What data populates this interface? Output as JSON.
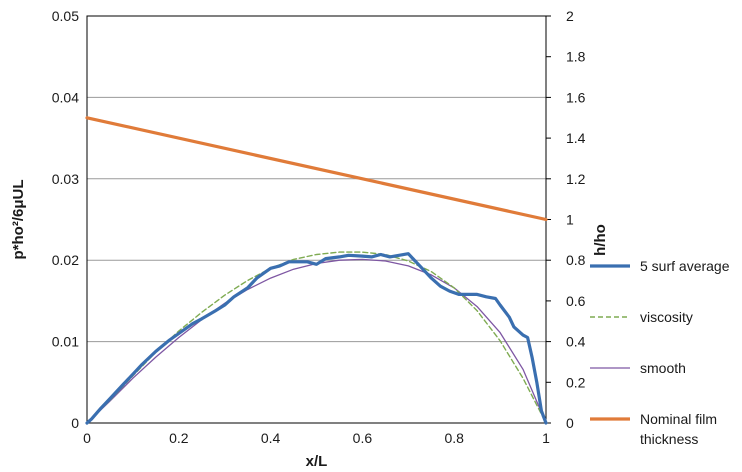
{
  "chart_data": {
    "type": "line",
    "title": "",
    "xlabel": "x/L",
    "ylabel_left": "p*ho²/6μUL",
    "ylabel_right": "h/ho",
    "xlim": [
      0,
      1
    ],
    "ylim_left": [
      0,
      0.05
    ],
    "ylim_right": [
      0,
      2
    ],
    "x_ticks": [
      "0",
      "0.2",
      "0.4",
      "0.6",
      "0.8",
      "1"
    ],
    "y_left_ticks": [
      "0",
      "0.01",
      "0.02",
      "0.03",
      "0.04",
      "0.05"
    ],
    "y_right_ticks": [
      "0",
      "0.2",
      "0.4",
      "0.6",
      "0.8",
      "1",
      "1.2",
      "1.4",
      "1.6",
      "1.8",
      "2"
    ],
    "grid": "horizontal",
    "legend_position": "right",
    "series": [
      {
        "name": "5 surf average",
        "axis": "left",
        "color": "#3a6fb0",
        "style": "solid-thick",
        "points": [
          [
            0,
            0
          ],
          [
            0.01,
            0.0005
          ],
          [
            0.03,
            0.0018
          ],
          [
            0.05,
            0.003
          ],
          [
            0.08,
            0.0048
          ],
          [
            0.1,
            0.006
          ],
          [
            0.12,
            0.0072
          ],
          [
            0.15,
            0.0088
          ],
          [
            0.18,
            0.0102
          ],
          [
            0.2,
            0.011
          ],
          [
            0.23,
            0.0122
          ],
          [
            0.25,
            0.0128
          ],
          [
            0.28,
            0.0138
          ],
          [
            0.3,
            0.0145
          ],
          [
            0.32,
            0.0155
          ],
          [
            0.35,
            0.0166
          ],
          [
            0.37,
            0.0178
          ],
          [
            0.4,
            0.019
          ],
          [
            0.42,
            0.0193
          ],
          [
            0.44,
            0.0198
          ],
          [
            0.46,
            0.0198
          ],
          [
            0.48,
            0.0198
          ],
          [
            0.5,
            0.0195
          ],
          [
            0.52,
            0.0202
          ],
          [
            0.55,
            0.0204
          ],
          [
            0.57,
            0.0206
          ],
          [
            0.6,
            0.0205
          ],
          [
            0.62,
            0.0204
          ],
          [
            0.64,
            0.0207
          ],
          [
            0.66,
            0.0204
          ],
          [
            0.68,
            0.0206
          ],
          [
            0.7,
            0.0208
          ],
          [
            0.71,
            0.0202
          ],
          [
            0.73,
            0.019
          ],
          [
            0.75,
            0.0178
          ],
          [
            0.77,
            0.0168
          ],
          [
            0.79,
            0.0162
          ],
          [
            0.81,
            0.0158
          ],
          [
            0.83,
            0.0158
          ],
          [
            0.85,
            0.0158
          ],
          [
            0.87,
            0.0155
          ],
          [
            0.89,
            0.0153
          ],
          [
            0.9,
            0.0145
          ],
          [
            0.92,
            0.013
          ],
          [
            0.93,
            0.0118
          ],
          [
            0.95,
            0.0108
          ],
          [
            0.96,
            0.0105
          ],
          [
            0.97,
            0.008
          ],
          [
            0.98,
            0.005
          ],
          [
            0.99,
            0.0015
          ],
          [
            1.0,
            0
          ]
        ]
      },
      {
        "name": "viscosity",
        "axis": "left",
        "color": "#7fab52",
        "style": "dashed",
        "points": [
          [
            0,
            0
          ],
          [
            0.05,
            0.0028
          ],
          [
            0.1,
            0.0058
          ],
          [
            0.15,
            0.0087
          ],
          [
            0.2,
            0.0113
          ],
          [
            0.25,
            0.0136
          ],
          [
            0.3,
            0.0157
          ],
          [
            0.35,
            0.0175
          ],
          [
            0.4,
            0.019
          ],
          [
            0.45,
            0.0201
          ],
          [
            0.5,
            0.0207
          ],
          [
            0.55,
            0.021
          ],
          [
            0.6,
            0.021
          ],
          [
            0.65,
            0.0207
          ],
          [
            0.7,
            0.0199
          ],
          [
            0.75,
            0.0186
          ],
          [
            0.8,
            0.0166
          ],
          [
            0.85,
            0.0138
          ],
          [
            0.9,
            0.0101
          ],
          [
            0.95,
            0.0055
          ],
          [
            1.0,
            0
          ]
        ]
      },
      {
        "name": "smooth",
        "axis": "left",
        "color": "#7e57a3",
        "style": "solid-thin",
        "points": [
          [
            0,
            0
          ],
          [
            0.05,
            0.0027
          ],
          [
            0.1,
            0.0055
          ],
          [
            0.15,
            0.0081
          ],
          [
            0.2,
            0.0105
          ],
          [
            0.25,
            0.0127
          ],
          [
            0.3,
            0.0147
          ],
          [
            0.35,
            0.0164
          ],
          [
            0.4,
            0.0178
          ],
          [
            0.45,
            0.0189
          ],
          [
            0.5,
            0.0196
          ],
          [
            0.55,
            0.02
          ],
          [
            0.6,
            0.0201
          ],
          [
            0.65,
            0.0199
          ],
          [
            0.7,
            0.0193
          ],
          [
            0.75,
            0.0182
          ],
          [
            0.8,
            0.0166
          ],
          [
            0.85,
            0.0143
          ],
          [
            0.9,
            0.0111
          ],
          [
            0.95,
            0.0066
          ],
          [
            1.0,
            0
          ]
        ]
      },
      {
        "name": "Nominal film thickness",
        "axis": "right",
        "color": "#e07b39",
        "style": "solid-thick",
        "points": [
          [
            0,
            1.5
          ],
          [
            1,
            1.0
          ]
        ]
      }
    ]
  }
}
